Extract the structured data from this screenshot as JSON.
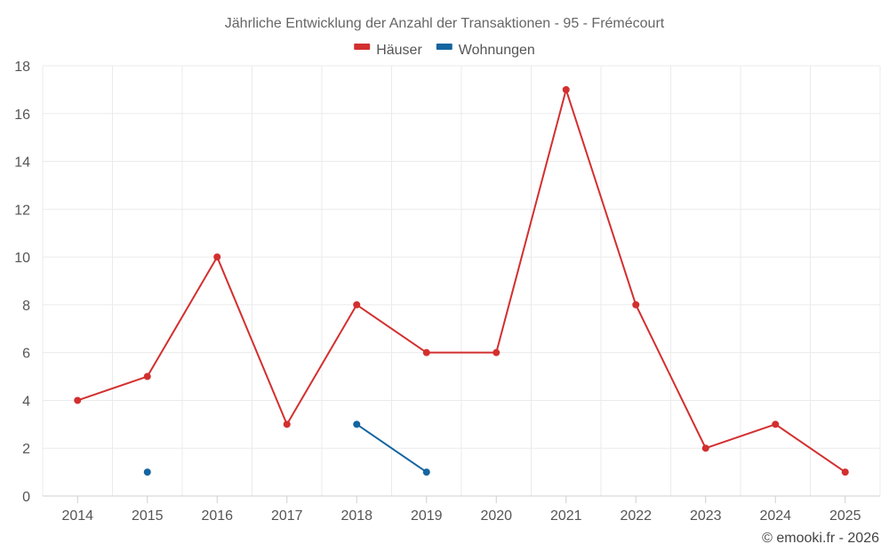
{
  "chart_data": {
    "type": "line",
    "title": "Jährliche Entwicklung der Anzahl der Transaktionen - 95 - Frémécourt",
    "categories": [
      "2014",
      "2015",
      "2016",
      "2017",
      "2018",
      "2019",
      "2020",
      "2021",
      "2022",
      "2023",
      "2024",
      "2025"
    ],
    "series": [
      {
        "name": "Häuser",
        "color": "#d32f2f",
        "values": [
          4,
          5,
          10,
          3,
          8,
          6,
          6,
          17,
          8,
          2,
          3,
          1
        ]
      },
      {
        "name": "Wohnungen",
        "color": "#1565a0",
        "values": [
          null,
          1,
          null,
          null,
          3,
          1,
          null,
          null,
          null,
          null,
          null,
          null
        ]
      }
    ],
    "ylim": [
      0,
      18
    ],
    "yticks": [
      0,
      2,
      4,
      6,
      8,
      10,
      12,
      14,
      16,
      18
    ],
    "grid": true,
    "legend_position": "top-center"
  },
  "credit": "© emooki.fr - 2026"
}
